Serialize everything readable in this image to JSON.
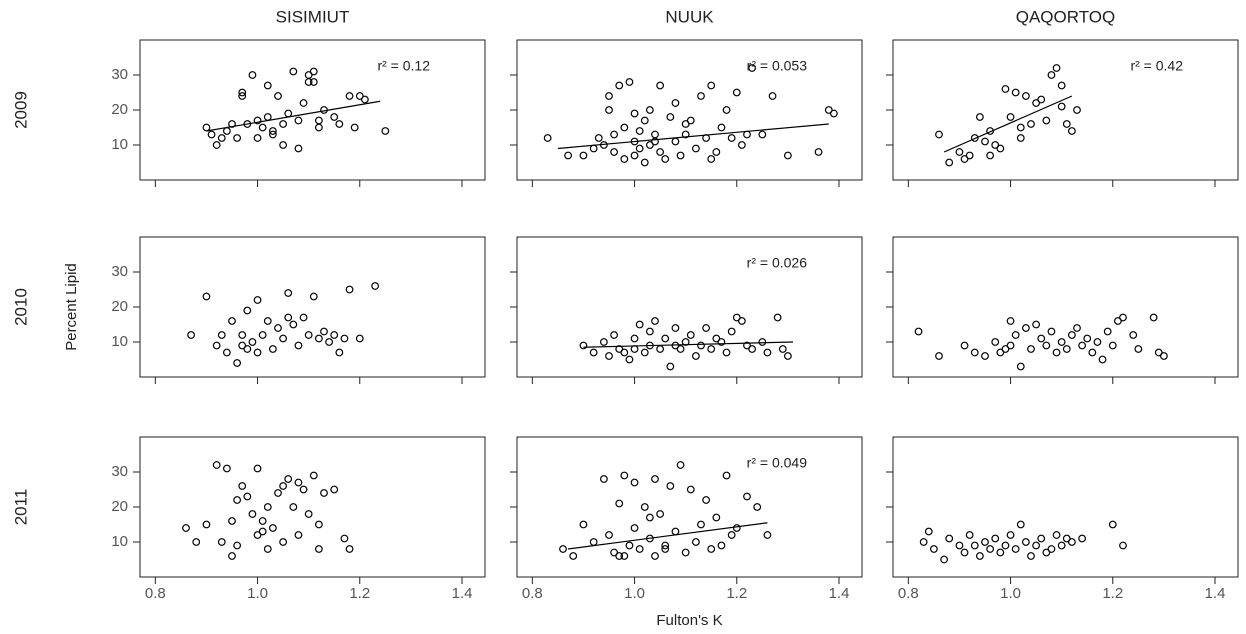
{
  "chart_data": [
    {
      "type": "scatter",
      "title": "SISIMIUT",
      "row_label": "2009",
      "annotation": "r² = 0.12",
      "xlim": [
        0.77,
        1.445
      ],
      "ylim": [
        0,
        40
      ],
      "xticks": [
        0.8,
        1,
        1.2,
        1.4
      ],
      "yticks": [
        10,
        20,
        30
      ],
      "x": [
        0.9,
        0.91,
        0.92,
        0.93,
        0.94,
        0.95,
        0.96,
        0.97,
        0.98,
        0.99,
        1.0,
        1.0,
        1.01,
        1.02,
        1.02,
        1.03,
        1.04,
        1.05,
        1.05,
        1.06,
        1.07,
        1.08,
        1.09,
        1.1,
        1.1,
        1.11,
        1.12,
        1.12,
        1.13,
        1.15,
        1.16,
        1.18,
        1.19,
        1.2,
        1.21,
        1.25,
        0.97,
        1.03,
        1.08,
        1.11
      ],
      "values": [
        15,
        13,
        10,
        12,
        14,
        16,
        12,
        24,
        16,
        30,
        17,
        12,
        15,
        27,
        18,
        14,
        24,
        16,
        10,
        19,
        31,
        9,
        22,
        28,
        30,
        31,
        15,
        17,
        20,
        18,
        16,
        24,
        15,
        24,
        23,
        14,
        25,
        13,
        17,
        28
      ],
      "fit": {
        "x": [
          0.9,
          1.24
        ],
        "values": [
          14,
          22.5
        ]
      }
    },
    {
      "type": "scatter",
      "title": "NUUK",
      "annotation": "r² = 0.053",
      "xlim": [
        0.77,
        1.445
      ],
      "ylim": [
        0,
        40
      ],
      "xticks": [
        0.8,
        1,
        1.2,
        1.4
      ],
      "yticks": [
        10,
        20,
        30
      ],
      "x": [
        0.83,
        0.87,
        0.9,
        0.92,
        0.93,
        0.94,
        0.95,
        0.96,
        0.96,
        0.97,
        0.98,
        0.98,
        0.99,
        1.0,
        1.0,
        1.01,
        1.01,
        1.02,
        1.02,
        1.03,
        1.03,
        1.04,
        1.05,
        1.05,
        1.06,
        1.07,
        1.08,
        1.08,
        1.09,
        1.1,
        1.11,
        1.12,
        1.13,
        1.14,
        1.15,
        1.16,
        1.17,
        1.18,
        1.19,
        1.2,
        1.21,
        1.23,
        1.25,
        1.27,
        1.3,
        1.36,
        1.38,
        1.39,
        0.95,
        1.0,
        1.04,
        1.1,
        1.15,
        1.22
      ],
      "values": [
        12,
        7,
        7,
        9,
        12,
        10,
        24,
        8,
        13,
        27,
        6,
        15,
        28,
        11,
        7,
        14,
        9,
        17,
        5,
        20,
        10,
        13,
        8,
        27,
        6,
        18,
        11,
        22,
        7,
        13,
        17,
        9,
        24,
        12,
        27,
        8,
        15,
        20,
        12,
        25,
        10,
        32,
        13,
        24,
        7,
        8,
        20,
        19,
        20,
        19,
        11,
        16,
        6,
        13
      ],
      "fit": {
        "x": [
          0.85,
          1.38
        ],
        "values": [
          9,
          16
        ]
      }
    },
    {
      "type": "scatter",
      "title": "QAQORTOQ",
      "annotation": "r² = 0.42",
      "xlim": [
        0.77,
        1.445
      ],
      "ylim": [
        0,
        40
      ],
      "xticks": [
        0.8,
        1,
        1.2,
        1.4
      ],
      "yticks": [
        10,
        20,
        30
      ],
      "x": [
        0.86,
        0.88,
        0.9,
        0.91,
        0.92,
        0.93,
        0.94,
        0.95,
        0.96,
        0.97,
        0.98,
        0.99,
        1.0,
        1.01,
        1.02,
        1.03,
        1.04,
        1.05,
        1.06,
        1.07,
        1.08,
        1.09,
        1.1,
        1.1,
        1.11,
        1.12,
        1.13,
        0.96,
        1.02
      ],
      "values": [
        13,
        5,
        8,
        6,
        7,
        12,
        18,
        11,
        14,
        10,
        9,
        26,
        18,
        25,
        12,
        24,
        16,
        22,
        23,
        17,
        30,
        32,
        27,
        21,
        16,
        14,
        20,
        7,
        15
      ],
      "fit": {
        "x": [
          0.87,
          1.12
        ],
        "values": [
          8,
          24
        ]
      }
    },
    {
      "type": "scatter",
      "row_label": "2010",
      "y_label": "Percent Lipid",
      "xlim": [
        0.77,
        1.445
      ],
      "ylim": [
        0,
        40
      ],
      "xticks": [
        0.8,
        1,
        1.2,
        1.4
      ],
      "yticks": [
        10,
        20,
        30
      ],
      "x": [
        0.87,
        0.9,
        0.92,
        0.93,
        0.94,
        0.95,
        0.96,
        0.97,
        0.97,
        0.98,
        0.99,
        1.0,
        1.0,
        1.01,
        1.02,
        1.03,
        1.04,
        1.05,
        1.06,
        1.07,
        1.08,
        1.09,
        1.1,
        1.11,
        1.12,
        1.13,
        1.14,
        1.15,
        1.16,
        1.17,
        1.18,
        1.2,
        1.23,
        0.98,
        1.06
      ],
      "values": [
        12,
        23,
        9,
        12,
        7,
        16,
        4,
        12,
        9,
        19,
        10,
        22,
        7,
        12,
        16,
        8,
        14,
        11,
        24,
        15,
        9,
        17,
        12,
        23,
        11,
        13,
        10,
        12,
        7,
        11,
        25,
        11,
        26,
        8,
        17
      ]
    },
    {
      "type": "scatter",
      "annotation": "r² = 0.026",
      "xlim": [
        0.77,
        1.445
      ],
      "ylim": [
        0,
        40
      ],
      "xticks": [
        0.8,
        1,
        1.2,
        1.4
      ],
      "yticks": [
        10,
        20,
        30
      ],
      "x": [
        0.9,
        0.92,
        0.94,
        0.95,
        0.96,
        0.97,
        0.98,
        0.99,
        1.0,
        1.0,
        1.01,
        1.02,
        1.03,
        1.03,
        1.04,
        1.05,
        1.06,
        1.07,
        1.08,
        1.08,
        1.09,
        1.1,
        1.11,
        1.12,
        1.13,
        1.14,
        1.15,
        1.16,
        1.17,
        1.18,
        1.19,
        1.2,
        1.21,
        1.22,
        1.23,
        1.25,
        1.26,
        1.28,
        1.29,
        1.3
      ],
      "values": [
        9,
        7,
        10,
        6,
        12,
        8,
        7,
        5,
        11,
        8,
        15,
        7,
        13,
        9,
        16,
        8,
        11,
        3,
        9,
        14,
        8,
        10,
        12,
        6,
        9,
        14,
        8,
        11,
        10,
        7,
        13,
        17,
        16,
        9,
        8,
        10,
        7,
        17,
        8,
        6
      ],
      "fit": {
        "x": [
          0.9,
          1.31
        ],
        "values": [
          8.5,
          10
        ]
      }
    },
    {
      "type": "scatter",
      "xlim": [
        0.77,
        1.445
      ],
      "ylim": [
        0,
        40
      ],
      "xticks": [
        0.8,
        1,
        1.2,
        1.4
      ],
      "yticks": [
        10,
        20,
        30
      ],
      "x": [
        0.82,
        0.86,
        0.91,
        0.93,
        0.95,
        0.97,
        0.98,
        0.99,
        1.0,
        1.0,
        1.01,
        1.02,
        1.03,
        1.04,
        1.05,
        1.06,
        1.07,
        1.08,
        1.09,
        1.1,
        1.11,
        1.12,
        1.13,
        1.14,
        1.15,
        1.16,
        1.17,
        1.18,
        1.19,
        1.2,
        1.21,
        1.22,
        1.24,
        1.25,
        1.28,
        1.29,
        1.3
      ],
      "values": [
        13,
        6,
        9,
        7,
        6,
        10,
        7,
        8,
        16,
        9,
        12,
        3,
        14,
        8,
        15,
        11,
        9,
        13,
        7,
        10,
        8,
        12,
        14,
        9,
        11,
        7,
        10,
        5,
        13,
        9,
        16,
        17,
        12,
        8,
        17,
        7,
        6
      ]
    },
    {
      "type": "scatter",
      "row_label": "2011",
      "xlim": [
        0.77,
        1.445
      ],
      "ylim": [
        0,
        40
      ],
      "xticks": [
        0.8,
        {
          "value": 1,
          "label": "1.0"
        },
        1.2,
        1.4
      ],
      "yticks": [
        10,
        20,
        30
      ],
      "x": [
        0.86,
        0.88,
        0.9,
        0.92,
        0.93,
        0.94,
        0.95,
        0.95,
        0.96,
        0.97,
        0.98,
        0.99,
        1.0,
        1.0,
        1.01,
        1.02,
        1.02,
        1.03,
        1.04,
        1.05,
        1.05,
        1.06,
        1.07,
        1.08,
        1.08,
        1.09,
        1.1,
        1.11,
        1.12,
        1.12,
        1.13,
        1.15,
        1.17,
        1.18,
        0.96,
        1.01
      ],
      "values": [
        14,
        10,
        15,
        32,
        10,
        31,
        6,
        16,
        9,
        26,
        23,
        18,
        12,
        31,
        16,
        8,
        20,
        14,
        24,
        10,
        26,
        28,
        20,
        12,
        27,
        25,
        18,
        29,
        15,
        8,
        24,
        25,
        11,
        8,
        22,
        13
      ]
    },
    {
      "type": "scatter",
      "x_label": "Fulton's K",
      "annotation": "r² = 0.049",
      "xlim": [
        0.77,
        1.445
      ],
      "ylim": [
        0,
        40
      ],
      "xticks": [
        0.8,
        {
          "value": 1,
          "label": "1.0"
        },
        1.2,
        1.4
      ],
      "yticks": [
        10,
        20,
        30
      ],
      "x": [
        0.86,
        0.88,
        0.9,
        0.92,
        0.94,
        0.95,
        0.96,
        0.97,
        0.98,
        0.98,
        0.99,
        1.0,
        1.0,
        1.01,
        1.02,
        1.03,
        1.04,
        1.04,
        1.05,
        1.06,
        1.07,
        1.08,
        1.09,
        1.1,
        1.11,
        1.12,
        1.13,
        1.14,
        1.15,
        1.16,
        1.17,
        1.18,
        1.19,
        1.2,
        1.22,
        1.24,
        1.26,
        0.97,
        1.03,
        1.06
      ],
      "values": [
        8,
        6,
        15,
        10,
        28,
        12,
        7,
        21,
        6,
        29,
        9,
        14,
        27,
        8,
        20,
        11,
        6,
        28,
        18,
        8,
        26,
        13,
        32,
        7,
        25,
        10,
        15,
        22,
        8,
        17,
        9,
        29,
        12,
        14,
        23,
        20,
        12,
        6,
        17,
        9
      ],
      "fit": {
        "x": [
          0.87,
          1.26
        ],
        "values": [
          8,
          15.5
        ]
      }
    },
    {
      "type": "scatter",
      "xlim": [
        0.77,
        1.445
      ],
      "ylim": [
        0,
        40
      ],
      "xticks": [
        0.8,
        {
          "value": 1,
          "label": "1.0"
        },
        1.2,
        1.4
      ],
      "yticks": [
        10,
        20,
        30
      ],
      "x": [
        0.83,
        0.84,
        0.85,
        0.87,
        0.88,
        0.9,
        0.91,
        0.92,
        0.93,
        0.94,
        0.95,
        0.96,
        0.97,
        0.98,
        0.99,
        1.0,
        1.01,
        1.02,
        1.03,
        1.04,
        1.05,
        1.06,
        1.07,
        1.08,
        1.09,
        1.1,
        1.11,
        1.12,
        1.14,
        1.2,
        1.22
      ],
      "values": [
        10,
        13,
        8,
        5,
        11,
        9,
        7,
        12,
        9,
        6,
        10,
        8,
        11,
        7,
        9,
        12,
        8,
        15,
        10,
        6,
        9,
        11,
        7,
        8,
        12,
        9,
        11,
        10,
        11,
        15,
        9
      ]
    }
  ]
}
